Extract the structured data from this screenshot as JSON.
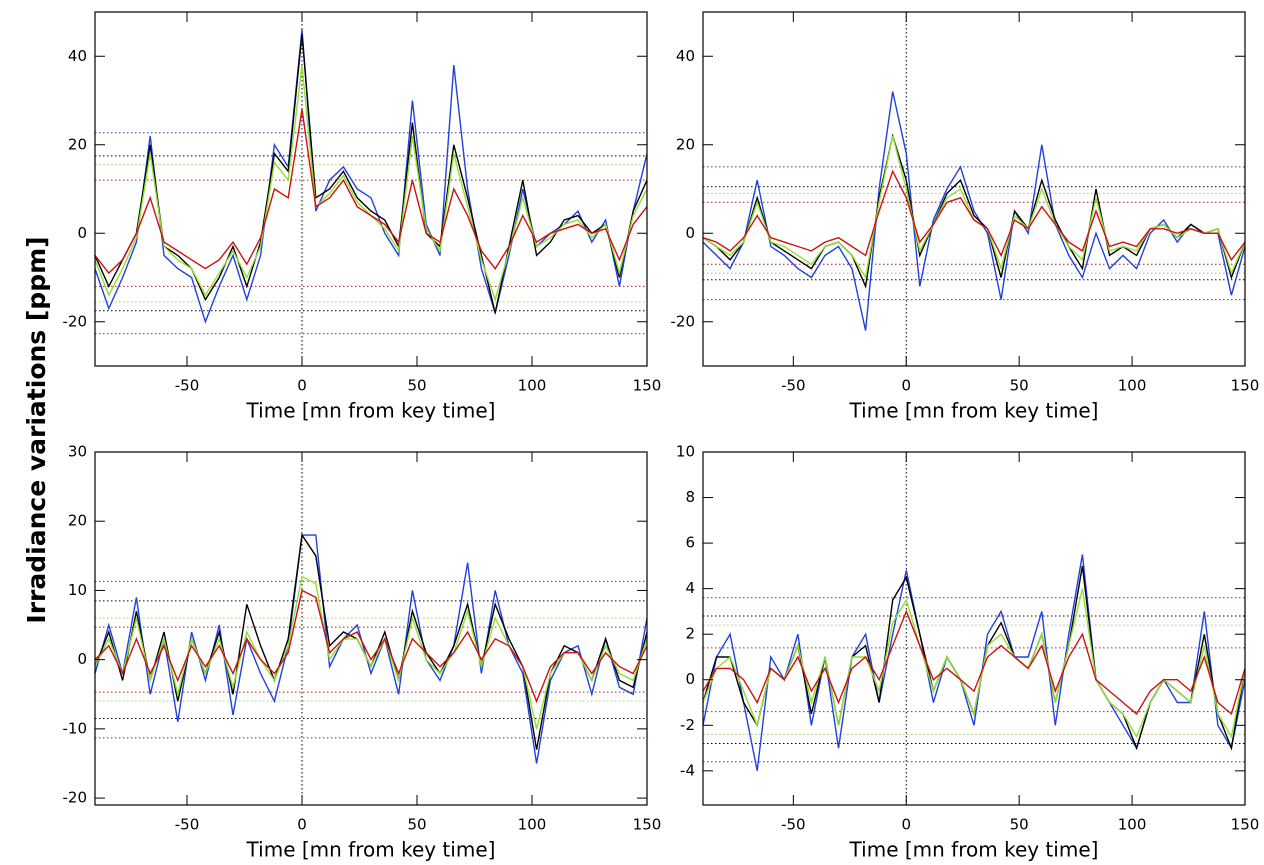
{
  "ylabel": "Irradiance variations [ppm]",
  "chart_data": [
    {
      "type": "line",
      "xlabel": "Time [mn from key time]",
      "xlim": [
        -90,
        150
      ],
      "xticks": [
        -50,
        0,
        50,
        100,
        150
      ],
      "ylim": [
        -30,
        50
      ],
      "yticks": [
        -20,
        0,
        20,
        40
      ],
      "vline": 0,
      "x": [
        -90,
        -84,
        -78,
        -72,
        -66,
        -60,
        -54,
        -48,
        -42,
        -36,
        -30,
        -24,
        -18,
        -12,
        -6,
        0,
        6,
        12,
        18,
        24,
        30,
        36,
        42,
        48,
        54,
        60,
        66,
        72,
        78,
        84,
        90,
        96,
        102,
        108,
        114,
        120,
        126,
        132,
        138,
        144,
        150
      ],
      "hlines": [
        {
          "value": 22.7,
          "color": "#2040e0"
        },
        {
          "value": -22.7,
          "color": "#2040e0"
        },
        {
          "value": 17.5,
          "color": "#000000"
        },
        {
          "value": -17.5,
          "color": "#000000"
        },
        {
          "value": 15.5,
          "color": "#90e030"
        },
        {
          "value": -15.5,
          "color": "#90e030"
        },
        {
          "value": 12,
          "color": "#d01010"
        },
        {
          "value": -12,
          "color": "#d01010"
        }
      ],
      "series": [
        {
          "color": "#2040e0",
          "values": [
            -8,
            -17,
            -10,
            -2,
            22,
            -5,
            -8,
            -10,
            -20,
            -12,
            -5,
            -15,
            -5,
            20,
            15,
            46,
            5,
            12,
            15,
            10,
            8,
            0,
            -5,
            30,
            2,
            -5,
            38,
            10,
            -8,
            -18,
            -5,
            10,
            -3,
            0,
            2,
            5,
            -2,
            3,
            -12,
            5,
            18
          ]
        },
        {
          "color": "#000000",
          "values": [
            -5,
            -12,
            -6,
            0,
            20,
            -3,
            -5,
            -8,
            -15,
            -10,
            -3,
            -12,
            -2,
            18,
            14,
            45,
            8,
            10,
            14,
            8,
            5,
            3,
            -3,
            25,
            0,
            -3,
            20,
            8,
            -5,
            -18,
            -3,
            12,
            -5,
            -2,
            3,
            4,
            0,
            2,
            -10,
            5,
            12
          ]
        },
        {
          "color": "#90e030",
          "values": [
            -6,
            -14,
            -8,
            -1,
            18,
            -3,
            -6,
            -8,
            -14,
            -9,
            -4,
            -10,
            -3,
            16,
            12,
            38,
            6,
            9,
            13,
            7,
            4,
            1,
            -4,
            22,
            1,
            -4,
            18,
            6,
            -6,
            -15,
            -4,
            8,
            -3,
            -1,
            2,
            3,
            -1,
            2,
            -9,
            4,
            10
          ]
        },
        {
          "color": "#d01010",
          "values": [
            -5,
            -9,
            -6,
            0,
            8,
            -2,
            -4,
            -6,
            -8,
            -6,
            -2,
            -7,
            -1,
            10,
            8,
            28,
            6,
            8,
            12,
            6,
            4,
            2,
            -2,
            12,
            0,
            -2,
            10,
            4,
            -4,
            -8,
            -3,
            4,
            -2,
            0,
            1,
            2,
            0,
            1,
            -6,
            2,
            6
          ]
        }
      ]
    },
    {
      "type": "line",
      "xlabel": "Time [mn from key time]",
      "xlim": [
        -90,
        150
      ],
      "xticks": [
        -50,
        0,
        50,
        100,
        150
      ],
      "ylim": [
        -30,
        50
      ],
      "yticks": [
        -20,
        0,
        20,
        40
      ],
      "vline": 0,
      "x": [
        -90,
        -84,
        -78,
        -72,
        -66,
        -60,
        -54,
        -48,
        -42,
        -36,
        -30,
        -24,
        -18,
        -12,
        -6,
        0,
        6,
        12,
        18,
        24,
        30,
        36,
        42,
        48,
        54,
        60,
        66,
        72,
        78,
        84,
        90,
        96,
        102,
        108,
        114,
        120,
        126,
        132,
        138,
        144,
        150
      ],
      "hlines": [
        {
          "value": 15,
          "color": "#2040e0"
        },
        {
          "value": -15,
          "color": "#2040e0"
        },
        {
          "value": 10.5,
          "color": "#000000"
        },
        {
          "value": -10.5,
          "color": "#000000"
        },
        {
          "value": 9,
          "color": "#90e030"
        },
        {
          "value": -9,
          "color": "#90e030"
        },
        {
          "value": 7,
          "color": "#d01010"
        },
        {
          "value": -7,
          "color": "#d01010"
        }
      ],
      "series": [
        {
          "color": "#2040e0",
          "values": [
            -2,
            -5,
            -8,
            -2,
            12,
            -3,
            -5,
            -8,
            -10,
            -5,
            -3,
            -8,
            -22,
            10,
            32,
            18,
            -12,
            3,
            10,
            15,
            5,
            0,
            -15,
            5,
            0,
            20,
            2,
            -5,
            -10,
            0,
            -8,
            -5,
            -8,
            0,
            3,
            -2,
            2,
            0,
            0,
            -14,
            -3
          ]
        },
        {
          "color": "#000000",
          "values": [
            -1,
            -3,
            -6,
            -2,
            8,
            -2,
            -4,
            -6,
            -8,
            -3,
            -2,
            -5,
            -12,
            8,
            22,
            12,
            -5,
            2,
            9,
            12,
            4,
            1,
            -10,
            5,
            1,
            12,
            3,
            -3,
            -8,
            10,
            -5,
            -3,
            -5,
            1,
            2,
            -1,
            2,
            0,
            1,
            -10,
            -2
          ]
        },
        {
          "color": "#90e030",
          "values": [
            -1,
            -3,
            -5,
            -2,
            7,
            -2,
            -3,
            -5,
            -7,
            -3,
            -2,
            -5,
            -10,
            7,
            22,
            10,
            -4,
            2,
            8,
            10,
            3,
            1,
            -8,
            4,
            1,
            10,
            2,
            -3,
            -6,
            8,
            -4,
            -3,
            -4,
            1,
            2,
            -1,
            1,
            0,
            1,
            -9,
            -2
          ]
        },
        {
          "color": "#d01010",
          "values": [
            -1,
            -2,
            -4,
            -1,
            4,
            -1,
            -2,
            -3,
            -4,
            -2,
            -1,
            -3,
            -5,
            5,
            14,
            8,
            -2,
            2,
            7,
            8,
            3,
            1,
            -5,
            3,
            1,
            6,
            2,
            -2,
            -4,
            5,
            -3,
            -2,
            -3,
            1,
            1,
            0,
            1,
            0,
            0,
            -6,
            -2
          ]
        }
      ]
    },
    {
      "type": "line",
      "xlabel": "Time [mn from key time]",
      "xlim": [
        -90,
        150
      ],
      "xticks": [
        -50,
        0,
        50,
        100,
        150
      ],
      "ylim": [
        -21,
        30
      ],
      "yticks": [
        -20,
        -10,
        0,
        10,
        20,
        30
      ],
      "vline": 0,
      "x": [
        -90,
        -84,
        -78,
        -72,
        -66,
        -60,
        -54,
        -48,
        -42,
        -36,
        -30,
        -24,
        -18,
        -12,
        -6,
        0,
        6,
        12,
        18,
        24,
        30,
        36,
        42,
        48,
        54,
        60,
        66,
        72,
        78,
        84,
        90,
        96,
        102,
        108,
        114,
        120,
        126,
        132,
        138,
        144,
        150
      ],
      "hlines": [
        {
          "value": 11.3,
          "color": "#2040e0"
        },
        {
          "value": -11.3,
          "color": "#2040e0"
        },
        {
          "value": 8.5,
          "color": "#000000"
        },
        {
          "value": -8.5,
          "color": "#000000"
        },
        {
          "value": 6,
          "color": "#90e030"
        },
        {
          "value": -6,
          "color": "#90e030"
        },
        {
          "value": 4.7,
          "color": "#d01010"
        },
        {
          "value": -4.7,
          "color": "#d01010"
        }
      ],
      "series": [
        {
          "color": "#2040e0",
          "values": [
            -2,
            5,
            -2,
            9,
            -5,
            3,
            -9,
            4,
            -3,
            5,
            -8,
            3,
            -2,
            -6,
            2,
            18,
            18,
            -1,
            3,
            5,
            -2,
            3,
            -5,
            10,
            0,
            -3,
            2,
            14,
            -2,
            10,
            2,
            -2,
            -15,
            -3,
            1,
            2,
            -5,
            3,
            -4,
            -5,
            6
          ]
        },
        {
          "color": "#000000",
          "values": [
            -1,
            4,
            -3,
            7,
            -3,
            4,
            -6,
            3,
            -2,
            4,
            -5,
            8,
            2,
            -3,
            3,
            18,
            15,
            2,
            4,
            3,
            -1,
            4,
            -3,
            7,
            1,
            -2,
            2,
            8,
            -1,
            8,
            3,
            -1,
            -13,
            -2,
            2,
            1,
            -3,
            3,
            -3,
            -4,
            4
          ]
        },
        {
          "color": "#90e030",
          "values": [
            -1,
            3,
            -2,
            6,
            -3,
            3,
            -5,
            3,
            -2,
            3,
            -4,
            4,
            0,
            -3,
            2,
            12,
            11,
            0,
            3,
            3,
            -1,
            3,
            -3,
            6,
            0,
            -2,
            1,
            7,
            -1,
            6,
            2,
            -1,
            -10,
            -2,
            1,
            1,
            -3,
            2,
            -2,
            -3,
            3
          ]
        },
        {
          "color": "#d01010",
          "values": [
            0,
            2,
            -2,
            3,
            -2,
            2,
            -3,
            2,
            -1,
            2,
            -2,
            3,
            0,
            -2,
            1,
            10,
            9,
            1,
            3,
            4,
            0,
            3,
            -2,
            3,
            1,
            -1,
            1,
            4,
            0,
            3,
            2,
            -1,
            -6,
            -1,
            1,
            1,
            -2,
            1,
            -1,
            -2,
            2
          ]
        }
      ]
    },
    {
      "type": "line",
      "xlabel": "Time [mn from key time]",
      "xlim": [
        -90,
        150
      ],
      "xticks": [
        -50,
        0,
        50,
        100,
        150
      ],
      "ylim": [
        -5.5,
        10
      ],
      "yticks": [
        -4,
        -2,
        0,
        2,
        4,
        6,
        8,
        10
      ],
      "vline": 0,
      "x": [
        -90,
        -84,
        -78,
        -72,
        -66,
        -60,
        -54,
        -48,
        -42,
        -36,
        -30,
        -24,
        -18,
        -12,
        -6,
        0,
        6,
        12,
        18,
        24,
        30,
        36,
        42,
        48,
        54,
        60,
        66,
        72,
        78,
        84,
        90,
        96,
        102,
        108,
        114,
        120,
        126,
        132,
        138,
        144,
        150
      ],
      "hlines": [
        {
          "value": 3.6,
          "color": "#2040e0"
        },
        {
          "value": -3.6,
          "color": "#2040e0"
        },
        {
          "value": 2.8,
          "color": "#000000"
        },
        {
          "value": -2.8,
          "color": "#000000"
        },
        {
          "value": 2.4,
          "color": "#90e030"
        },
        {
          "value": -2.4,
          "color": "#90e030"
        },
        {
          "value": 1.4,
          "color": "#d01010"
        },
        {
          "value": -1.4,
          "color": "#d01010"
        }
      ],
      "series": [
        {
          "color": "#2040e0",
          "values": [
            -2,
            1,
            2,
            -1,
            -4,
            1,
            0,
            2,
            -2,
            1,
            -3,
            1,
            2,
            -1,
            2,
            4.8,
            2,
            -1,
            1,
            0,
            -2,
            2,
            3,
            1,
            1,
            3,
            -2,
            2,
            5.5,
            0,
            -1,
            -2,
            -3,
            -1,
            0,
            -1,
            -1,
            3,
            -2,
            -3,
            0
          ]
        },
        {
          "color": "#000000",
          "values": [
            -1,
            1,
            1,
            -1,
            -2,
            0.5,
            0,
            1.5,
            -1.5,
            1,
            -2,
            1,
            1.5,
            -1,
            3.5,
            4.5,
            2,
            -0.5,
            1,
            0,
            -1.5,
            1.5,
            2.5,
            1,
            0.5,
            2,
            -1,
            1.5,
            5,
            0,
            -1,
            -1.5,
            -3,
            -1,
            0,
            -0.5,
            -1,
            2,
            -1.5,
            -3,
            0.5
          ]
        },
        {
          "color": "#90e030",
          "values": [
            -1,
            0.5,
            1,
            -0.5,
            -2,
            0.5,
            0,
            1.5,
            -1,
            1,
            -2,
            1,
            1,
            -0.5,
            2.5,
            3.5,
            1.5,
            -0.5,
            1,
            0,
            -1.5,
            1.5,
            2,
            1,
            0.5,
            2,
            -1,
            1.5,
            4,
            0,
            -1,
            -1.5,
            -2.5,
            -1,
            0,
            -0.5,
            -1,
            1.5,
            -1.5,
            -2.5,
            0.5
          ]
        },
        {
          "color": "#d01010",
          "values": [
            -0.5,
            0.5,
            0.5,
            0,
            -1,
            0.5,
            0,
            1,
            -0.5,
            0.5,
            -1,
            0.5,
            1,
            0,
            1.5,
            3,
            1.5,
            0,
            0.5,
            0,
            -0.5,
            1,
            1.5,
            1,
            0.5,
            1.5,
            -0.5,
            1,
            2,
            0,
            -0.5,
            -1,
            -1.5,
            -0.5,
            0,
            0,
            -0.5,
            1,
            -1,
            -1.5,
            0.5
          ]
        }
      ]
    }
  ]
}
